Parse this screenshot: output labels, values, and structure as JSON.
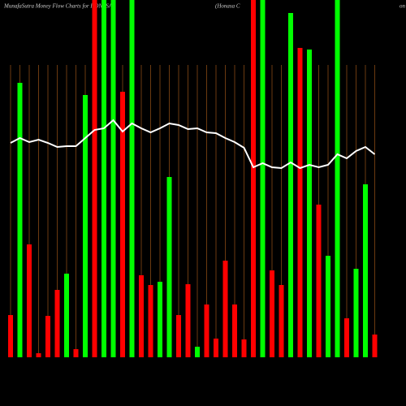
{
  "chart_data": {
    "type": "bar",
    "title": "MunafaSutra  Money Flow  Charts for HONASA",
    "subtitle": "(Honasa  C",
    "corner_text": "on",
    "ylim": [
      0,
      440
    ],
    "line_color": "#ffffff",
    "grid_color": "#6b3a10",
    "bars": [
      {
        "color": "#ff0000",
        "value": 52
      },
      {
        "color": "#00ff00",
        "value": 338
      },
      {
        "color": "#ff0000",
        "value": 139
      },
      {
        "color": "#ff0000",
        "value": 5
      },
      {
        "color": "#ff0000",
        "value": 51
      },
      {
        "color": "#ff0000",
        "value": 83
      },
      {
        "color": "#00ff00",
        "value": 103
      },
      {
        "color": "#ff0000",
        "value": 10
      },
      {
        "color": "#00ff00",
        "value": 323
      },
      {
        "color": "#ff0000",
        "value": 440
      },
      {
        "color": "#00ff00",
        "value": 440
      },
      {
        "color": "#00ff00",
        "value": 440
      },
      {
        "color": "#ff0000",
        "value": 327
      },
      {
        "color": "#00ff00",
        "value": 440
      },
      {
        "color": "#ff0000",
        "value": 101
      },
      {
        "color": "#ff0000",
        "value": 89
      },
      {
        "color": "#00ff00",
        "value": 93
      },
      {
        "color": "#00ff00",
        "value": 222
      },
      {
        "color": "#ff0000",
        "value": 52
      },
      {
        "color": "#ff0000",
        "value": 90
      },
      {
        "color": "#00ff00",
        "value": 13
      },
      {
        "color": "#ff0000",
        "value": 65
      },
      {
        "color": "#ff0000",
        "value": 23
      },
      {
        "color": "#ff0000",
        "value": 119
      },
      {
        "color": "#ff0000",
        "value": 65
      },
      {
        "color": "#ff0000",
        "value": 22
      },
      {
        "color": "#ff0000",
        "value": 440
      },
      {
        "color": "#00ff00",
        "value": 440
      },
      {
        "color": "#ff0000",
        "value": 107
      },
      {
        "color": "#ff0000",
        "value": 89
      },
      {
        "color": "#00ff00",
        "value": 424
      },
      {
        "color": "#ff0000",
        "value": 381
      },
      {
        "color": "#00ff00",
        "value": 379
      },
      {
        "color": "#ff0000",
        "value": 188
      },
      {
        "color": "#00ff00",
        "value": 125
      },
      {
        "color": "#00ff00",
        "value": 440
      },
      {
        "color": "#ff0000",
        "value": 48
      },
      {
        "color": "#00ff00",
        "value": 109
      },
      {
        "color": "#00ff00",
        "value": 213
      },
      {
        "color": "#ff0000",
        "value": 28
      }
    ],
    "line": [
      264,
      270,
      265,
      268,
      264,
      259,
      260,
      260,
      270,
      280,
      282,
      292,
      278,
      288,
      282,
      277,
      282,
      288,
      286,
      281,
      282,
      277,
      276,
      270,
      265,
      258,
      234,
      239,
      234,
      233,
      240,
      233,
      237,
      234,
      237,
      250,
      245,
      254,
      259,
      250
    ]
  }
}
